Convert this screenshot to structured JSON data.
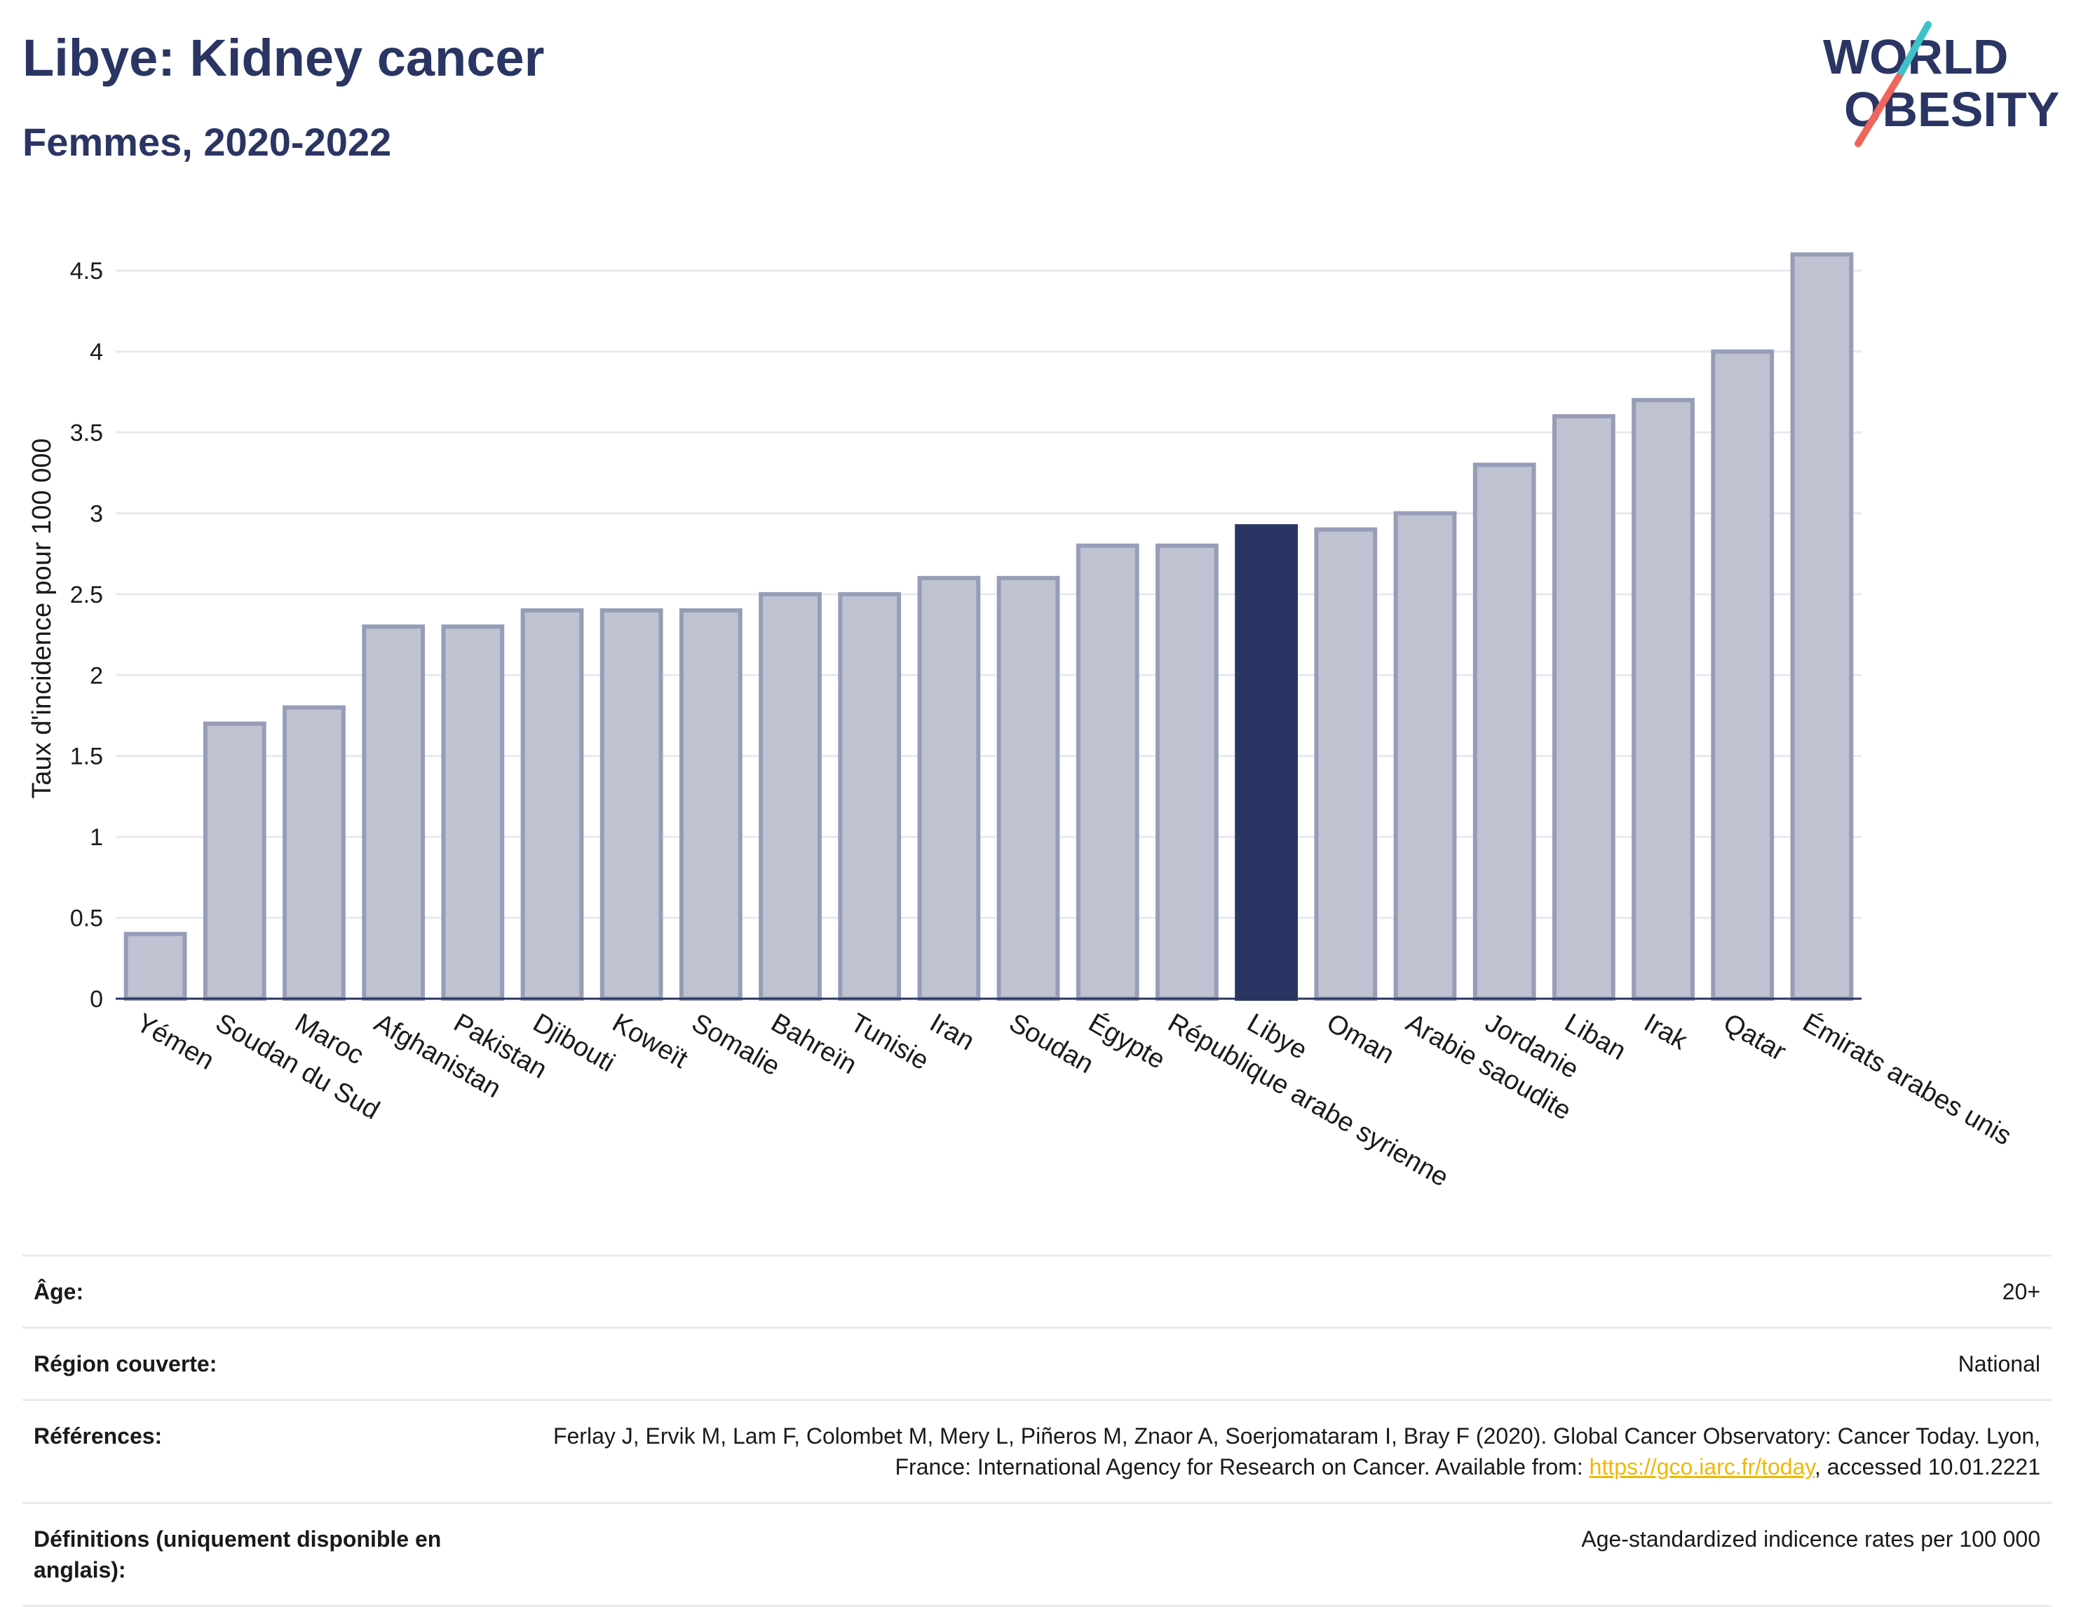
{
  "header": {
    "title": "Libye: Kidney cancer",
    "subtitle": "Femmes, 2020-2022"
  },
  "logo": {
    "line1": "WORLD",
    "line2": "OBESITY",
    "slash_colors": [
      "#3fc1c9",
      "#f0655b"
    ]
  },
  "colors": {
    "bar": "#bfc3d1",
    "bar_stroke": "#979db7",
    "highlight": "#2a3563",
    "grid": "#e8e9ef"
  },
  "chart_data": {
    "type": "bar",
    "ylabel": "Taux d'incidence pour 100 000",
    "ylim": [
      0,
      4.7
    ],
    "yticks": [
      0,
      0.5,
      1,
      1.5,
      2,
      2.5,
      3,
      3.5,
      4,
      4.5
    ],
    "ytick_labels": [
      "0",
      "0.5",
      "1",
      "1.5",
      "2",
      "2.5",
      "3",
      "3.5",
      "4",
      "4.5"
    ],
    "grid": true,
    "highlight": "Libye",
    "categories": [
      "Yémen",
      "Soudan du Sud",
      "Maroc",
      "Afghanistan",
      "Pakistan",
      "Djibouti",
      "Koweït",
      "Somalie",
      "Bahreïn",
      "Tunisie",
      "Iran",
      "Soudan",
      "Égypte",
      "République arabe syrienne",
      "Libye",
      "Oman",
      "Arabie saoudite",
      "Jordanie",
      "Liban",
      "Irak",
      "Qatar",
      "Émirats arabes unis"
    ],
    "values": [
      0.4,
      1.7,
      1.8,
      2.3,
      2.3,
      2.4,
      2.4,
      2.4,
      2.5,
      2.5,
      2.6,
      2.6,
      2.8,
      2.8,
      2.92,
      2.9,
      3.0,
      3.3,
      3.6,
      3.7,
      4.0,
      4.6
    ]
  },
  "meta": {
    "age_label": "Âge:",
    "age_value": "20+",
    "region_label": "Région couverte:",
    "region_value": "National",
    "refs_label": "Références:",
    "refs_text_before": "Ferlay J, Ervik M, Lam F, Colombet M, Mery L, Piñeros M, Znaor A, Soerjomataram I, Bray F (2020). Global Cancer Observatory: Cancer Today. Lyon, France: International Agency for Research on Cancer. Available from: ",
    "refs_link": "https://gco.iarc.fr/today",
    "refs_text_after": ", accessed 10.01.2221",
    "defs_label": "Définitions (uniquement disponible en anglais):",
    "defs_value": "Age-standardized indicence rates per 100 000"
  }
}
